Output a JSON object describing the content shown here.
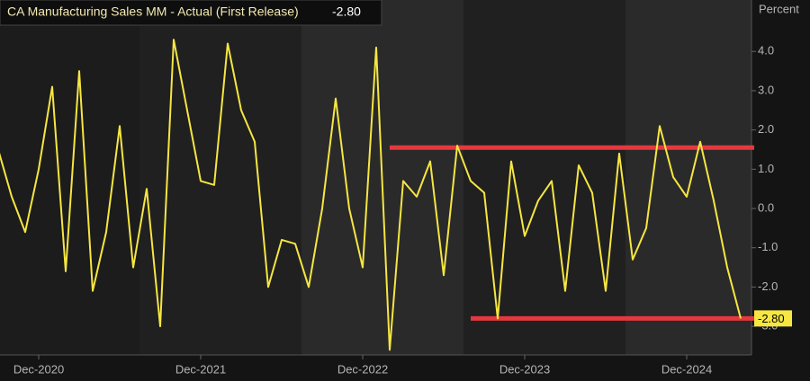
{
  "chart_data": {
    "type": "line",
    "title": "CA Manufacturing Sales MM - Actual (First Release)",
    "title_value": "-2.80",
    "y_axis_label": "Percent",
    "x": [
      "2020-09",
      "2020-10",
      "2020-11",
      "2020-12",
      "2021-01",
      "2021-02",
      "2021-03",
      "2021-04",
      "2021-05",
      "2021-06",
      "2021-07",
      "2021-08",
      "2021-09",
      "2021-10",
      "2021-11",
      "2021-12",
      "2022-01",
      "2022-02",
      "2022-03",
      "2022-04",
      "2022-05",
      "2022-06",
      "2022-07",
      "2022-08",
      "2022-09",
      "2022-10",
      "2022-11",
      "2022-12",
      "2023-01",
      "2023-02",
      "2023-03",
      "2023-04",
      "2023-05",
      "2023-06",
      "2023-07",
      "2023-08",
      "2023-09",
      "2023-10",
      "2023-11",
      "2023-12",
      "2024-01",
      "2024-02",
      "2024-03",
      "2024-04",
      "2024-05",
      "2024-06",
      "2024-07",
      "2024-08",
      "2024-09",
      "2024-10",
      "2024-11",
      "2024-12",
      "2025-01",
      "2025-02",
      "2025-03",
      "2025-04"
    ],
    "series": [
      {
        "name": "CA Manufacturing Sales MM - Actual (First Release)",
        "color": "#f5e642",
        "values": [
          1.5,
          0.3,
          -0.6,
          1.0,
          3.1,
          -1.6,
          3.5,
          -2.1,
          -0.6,
          2.1,
          -1.5,
          0.5,
          -3.0,
          4.3,
          2.5,
          0.7,
          0.6,
          4.2,
          2.5,
          1.7,
          -2.0,
          -0.8,
          -0.9,
          -2.0,
          0.0,
          2.8,
          0.0,
          -1.5,
          4.1,
          -3.6,
          0.7,
          0.3,
          1.2,
          -1.7,
          1.6,
          0.7,
          0.4,
          -2.8,
          1.2,
          -0.7,
          0.2,
          0.7,
          -2.1,
          1.1,
          0.4,
          -2.1,
          1.4,
          -1.3,
          -0.5,
          2.1,
          0.8,
          0.3,
          1.7,
          0.2,
          -1.5,
          -2.8
        ],
        "value_labels": [
          null,
          null,
          null,
          null,
          null,
          null,
          null,
          null,
          null,
          null,
          null,
          null,
          null,
          null,
          null,
          null,
          null,
          null,
          null,
          null,
          null,
          null,
          null,
          null,
          null,
          null,
          null,
          null,
          null,
          null,
          null,
          null,
          null,
          null,
          null,
          null,
          null,
          null,
          null,
          null,
          null,
          null,
          null,
          null,
          null,
          null,
          null,
          null,
          null,
          null,
          null,
          null,
          null,
          null,
          null,
          "-2.80"
        ]
      }
    ],
    "reference_lines": [
      {
        "value": 1.55,
        "start": "2023-02",
        "color": "#e5383f"
      },
      {
        "value": -2.8,
        "start": "2023-08",
        "color": "#e5383f"
      }
    ],
    "ylim": [
      -3.73,
      5.31
    ],
    "yticks": [
      {
        "value": -3,
        "label": "-3.0"
      },
      {
        "value": -2,
        "label": "-2.0"
      },
      {
        "value": -1,
        "label": "-1.0"
      },
      {
        "value": 0,
        "label": "0.0"
      },
      {
        "value": 1,
        "label": "1.0"
      },
      {
        "value": 2,
        "label": "2.0"
      },
      {
        "value": 3,
        "label": "3.0"
      },
      {
        "value": 4,
        "label": "4.0"
      }
    ],
    "xticks": [
      {
        "value": "2020-12",
        "label": "Dec-2020"
      },
      {
        "value": "2021-12",
        "label": "Dec-2021"
      },
      {
        "value": "2022-12",
        "label": "Dec-2022"
      },
      {
        "value": "2023-12",
        "label": "Dec-2023"
      },
      {
        "value": "2024-12",
        "label": "Dec-2024"
      }
    ]
  }
}
